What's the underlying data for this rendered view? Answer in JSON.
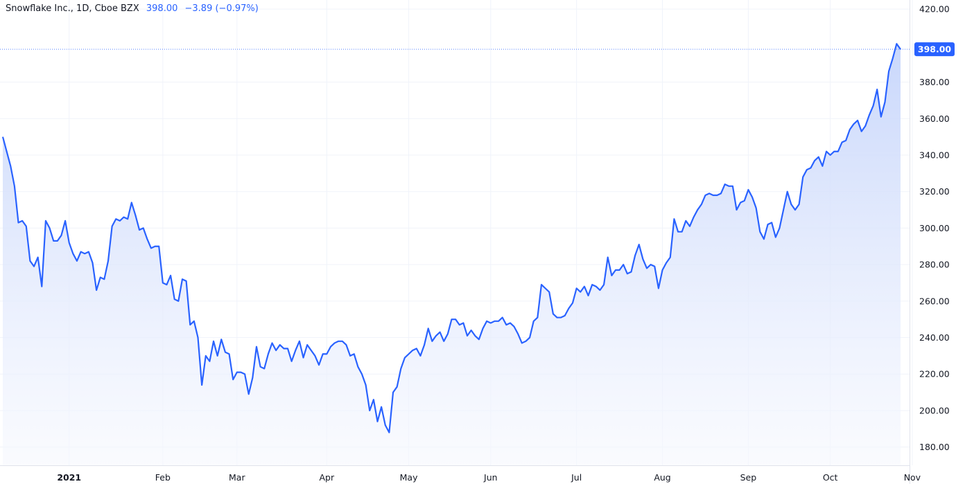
{
  "legend": {
    "symbol": "Snowflake Inc., 1D, Cboe BZX",
    "last": "398.00",
    "change": "−3.89 (−0.97%)"
  },
  "colors": {
    "line": "#2962ff",
    "fill_top": "#c6d5fb",
    "fill_bottom": "#f6f8fe",
    "grid": "#f0f3fa",
    "price_tag": "#2962ff"
  },
  "chart_data": {
    "type": "area",
    "title": "",
    "xlabel": "",
    "ylabel": "",
    "ylim": [
      170,
      425
    ],
    "y_ticks": [
      180,
      200,
      220,
      240,
      260,
      280,
      300,
      320,
      340,
      360,
      380,
      420
    ],
    "y_tick_labels": [
      "180.00",
      "200.00",
      "220.00",
      "240.00",
      "260.00",
      "280.00",
      "300.00",
      "320.00",
      "340.00",
      "360.00",
      "380.00",
      "420.00"
    ],
    "x_ticks": [
      {
        "label": "2021",
        "index": 17,
        "bold": true
      },
      {
        "label": "Feb",
        "index": 41
      },
      {
        "label": "Mar",
        "index": 60
      },
      {
        "label": "Apr",
        "index": 83
      },
      {
        "label": "May",
        "index": 104
      },
      {
        "label": "Jun",
        "index": 125
      },
      {
        "label": "Jul",
        "index": 147
      },
      {
        "label": "Aug",
        "index": 169
      },
      {
        "label": "Sep",
        "index": 191
      },
      {
        "label": "Oct",
        "index": 212
      },
      {
        "label": "Nov",
        "index": 233
      }
    ],
    "current_price": 398.0,
    "current_price_label": "398.00",
    "series": [
      {
        "values": [
          350,
          342,
          334,
          323,
          303,
          304,
          301,
          282,
          279,
          284,
          268,
          304,
          300,
          293,
          293,
          296,
          304,
          292,
          286,
          282,
          287,
          286,
          287,
          281,
          266,
          273,
          272,
          282,
          301,
          305,
          304,
          306,
          305,
          314,
          307,
          299,
          300,
          294,
          289,
          290,
          290,
          270,
          269,
          274,
          261,
          260,
          272,
          271,
          247,
          249,
          240,
          214,
          230,
          227,
          238,
          230,
          239,
          232,
          231,
          217,
          221,
          221,
          220,
          209,
          218,
          235,
          224,
          223,
          231,
          237,
          233,
          236,
          234,
          234,
          227,
          233,
          238,
          229,
          236,
          233,
          230,
          225,
          231,
          231,
          235,
          237,
          238,
          238,
          236,
          230,
          231,
          224,
          220,
          214,
          200,
          206,
          194,
          202,
          192,
          188,
          210,
          213,
          223,
          229,
          231,
          233,
          234,
          230,
          236,
          245,
          238,
          241,
          243,
          238,
          242,
          250,
          250,
          247,
          248,
          241,
          244,
          241,
          239,
          245,
          249,
          248,
          249,
          249,
          251,
          247,
          248,
          246,
          242,
          237,
          238,
          240,
          249,
          251,
          269,
          267,
          265,
          253,
          251,
          251,
          252,
          256,
          259,
          267,
          265,
          268,
          263,
          269,
          268,
          266,
          269,
          284,
          274,
          277,
          277,
          280,
          275,
          276,
          285,
          291,
          283,
          278,
          280,
          279,
          267,
          277,
          281,
          284,
          305,
          298,
          298,
          304,
          301,
          306,
          310,
          313,
          318,
          319,
          318,
          318,
          319,
          324,
          323,
          323,
          310,
          314,
          315,
          321,
          317,
          311,
          298,
          294,
          302,
          303,
          295,
          300,
          310,
          320,
          313,
          310,
          313,
          328,
          332,
          333,
          337,
          339,
          334,
          342,
          340,
          342,
          342,
          347,
          348,
          354,
          357,
          359,
          353,
          356,
          362,
          367,
          376,
          361,
          369,
          386,
          393,
          401,
          398
        ]
      }
    ]
  }
}
